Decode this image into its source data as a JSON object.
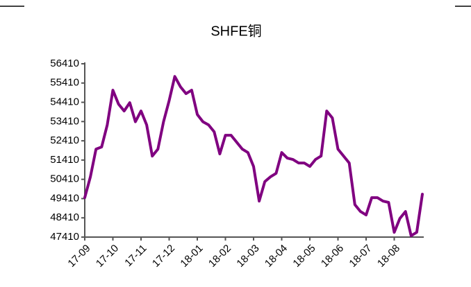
{
  "chart_data": {
    "type": "line",
    "title": "SHFE铜",
    "categories": [
      "17-09",
      null,
      null,
      null,
      null,
      "17-10",
      null,
      null,
      null,
      null,
      "17-11",
      null,
      null,
      null,
      null,
      "17-12",
      null,
      null,
      null,
      null,
      "18-01",
      null,
      null,
      null,
      null,
      "18-02",
      null,
      null,
      null,
      null,
      "18-03",
      null,
      null,
      null,
      null,
      "18-04",
      null,
      null,
      null,
      null,
      "18-05",
      null,
      null,
      null,
      null,
      "18-06",
      null,
      null,
      null,
      null,
      "18-07",
      null,
      null,
      null,
      null,
      "18-08",
      null,
      null,
      null,
      null,
      null
    ],
    "series": [
      {
        "name": "SHFE铜",
        "color": "#800080",
        "values": [
          49460,
          50540,
          51980,
          52090,
          53240,
          55040,
          54320,
          53960,
          54390,
          53400,
          53960,
          53240,
          51620,
          51980,
          53400,
          54500,
          55750,
          55220,
          54860,
          55040,
          53780,
          53400,
          53240,
          52880,
          51730,
          52700,
          52700,
          52340,
          51980,
          51800,
          51080,
          49280,
          50290,
          50540,
          50720,
          51800,
          51510,
          51440,
          51260,
          51260,
          51080,
          51440,
          51620,
          53960,
          53600,
          51980,
          51620,
          51260,
          49100,
          48740,
          48560,
          49460,
          49460,
          49280,
          49210,
          47660,
          48380,
          48740,
          47480,
          47660,
          49640
        ]
      }
    ],
    "ylim": [
      47410,
      56410
    ],
    "yticks": [
      47410,
      48410,
      49410,
      50410,
      51410,
      52410,
      53410,
      54410,
      55410,
      56410
    ]
  }
}
